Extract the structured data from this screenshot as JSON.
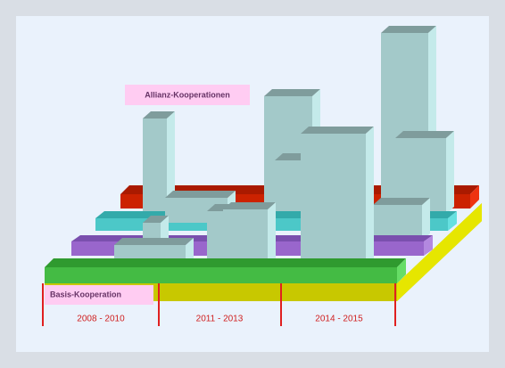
{
  "labels": {
    "alliance": "Allianz-Kooperationen",
    "basis": "Basis-Kooperation"
  },
  "periods": [
    "2008 - 2010",
    "2011 - 2013",
    "2014 - 2015"
  ]
}
